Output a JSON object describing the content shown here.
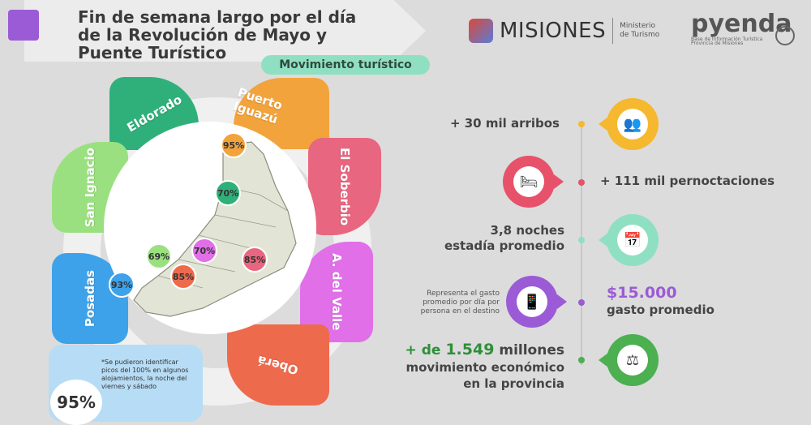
{
  "title": {
    "line1": "Fin de semana largo por el día",
    "line2": "de la Revolución de Mayo y",
    "line3": "Puente Turístico",
    "subtitle": "Movimiento turístico"
  },
  "logos": {
    "misiones": "MISIONES",
    "ministerio_line1": "Ministerio",
    "ministerio_line2": "de Turismo",
    "pyenda": "pyenda",
    "pyenda_sub_line1": "Base de Información Turística",
    "pyenda_sub_line2": "Provincia de Misiones"
  },
  "regions": [
    {
      "name": "Eldorado",
      "color": "#2fb07a"
    },
    {
      "name": "Puerto Iguazú",
      "color": "#f2a33c"
    },
    {
      "name": "El Soberbio",
      "color": "#e8667f"
    },
    {
      "name": "A. del Valle",
      "color": "#e06fe8"
    },
    {
      "name": "Oberá",
      "color": "#ee6a4c"
    },
    {
      "name": "Posadas",
      "color": "#3ea2ea"
    },
    {
      "name": "San Ignacio",
      "color": "#9be080"
    }
  ],
  "occupancy": {
    "iguazu": "95%",
    "eldorado": "70%",
    "ignacio": "69%",
    "valle": "70%",
    "soberbio": "85%",
    "obera": "85%",
    "posadas": "93%"
  },
  "note": {
    "text": "*Se pudieron identificar picos del 100% en algunos alojamientos, la noche del viernes y sábado",
    "percent": "95%"
  },
  "stats": {
    "arribos": "+ 30 mil arribos",
    "pernoctaciones": "+ 111 mil pernoctaciones",
    "noches_line1": "3,8 noches",
    "noches_line2": "estadía promedio",
    "gasto_note": "Representa el gasto promedio por día por persona en el destino",
    "gasto_value": "$15.000",
    "gasto_label": "gasto promedio",
    "mov_prefix": "+ de",
    "mov_value": "1.549",
    "mov_suffix": "millones",
    "mov_line2": "movimiento económico",
    "mov_line3": "en la provincia"
  },
  "icons": {
    "arribos": "people-icon",
    "pernoctaciones": "bed-icon",
    "noches": "calendar-icon",
    "gasto": "wallet-phone-icon",
    "movimiento": "scale-money-icon"
  },
  "colors": {
    "yellow": "#f5b82e",
    "red": "#e8516a",
    "teal": "#8fe0c2",
    "purple": "#9b5bd6",
    "green": "#4caf50"
  }
}
